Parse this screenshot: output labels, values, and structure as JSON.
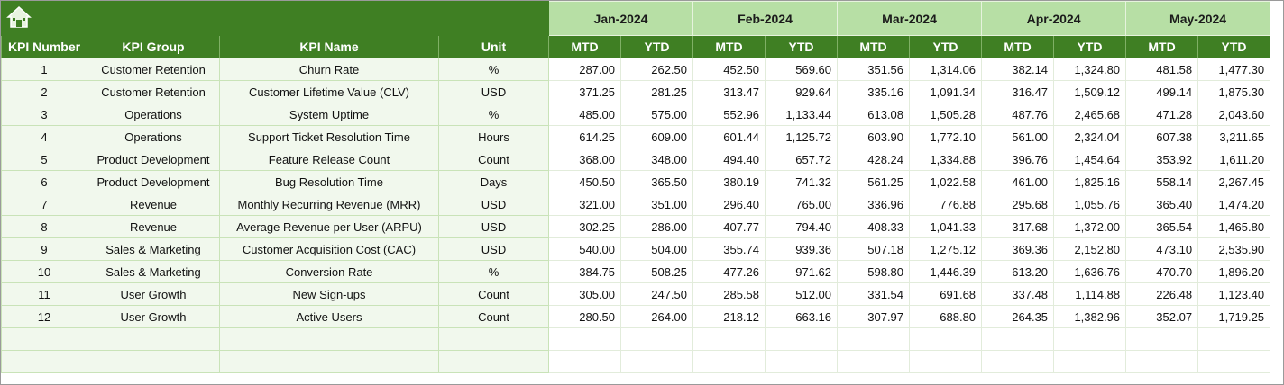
{
  "header": {
    "months": [
      "Jan-2024",
      "Feb-2024",
      "Mar-2024",
      "Apr-2024",
      "May-2024"
    ],
    "columns": [
      "KPI Number",
      "KPI Group",
      "KPI Name",
      "Unit"
    ],
    "subheaders": [
      "MTD",
      "YTD"
    ]
  },
  "table": {
    "rows": [
      [
        1,
        "Customer Retention",
        "Churn Rate",
        "%",
        "287.00",
        "262.50",
        "452.50",
        "569.60",
        "351.56",
        "1,314.06",
        "382.14",
        "1,324.80",
        "481.58",
        "1,477.30"
      ],
      [
        2,
        "Customer Retention",
        "Customer Lifetime Value (CLV)",
        "USD",
        "371.25",
        "281.25",
        "313.47",
        "929.64",
        "335.16",
        "1,091.34",
        "316.47",
        "1,509.12",
        "499.14",
        "1,875.30"
      ],
      [
        3,
        "Operations",
        "System Uptime",
        "%",
        "485.00",
        "575.00",
        "552.96",
        "1,133.44",
        "613.08",
        "1,505.28",
        "487.76",
        "2,465.68",
        "471.28",
        "2,043.60"
      ],
      [
        4,
        "Operations",
        "Support Ticket Resolution Time",
        "Hours",
        "614.25",
        "609.00",
        "601.44",
        "1,125.72",
        "603.90",
        "1,772.10",
        "561.00",
        "2,324.04",
        "607.38",
        "3,211.65"
      ],
      [
        5,
        "Product Development",
        "Feature Release Count",
        "Count",
        "368.00",
        "348.00",
        "494.40",
        "657.72",
        "428.24",
        "1,334.88",
        "396.76",
        "1,454.64",
        "353.92",
        "1,611.20"
      ],
      [
        6,
        "Product Development",
        "Bug Resolution Time",
        "Days",
        "450.50",
        "365.50",
        "380.19",
        "741.32",
        "561.25",
        "1,022.58",
        "461.00",
        "1,825.16",
        "558.14",
        "2,267.45"
      ],
      [
        7,
        "Revenue",
        "Monthly Recurring Revenue (MRR)",
        "USD",
        "321.00",
        "351.00",
        "296.40",
        "765.00",
        "336.96",
        "776.88",
        "295.68",
        "1,055.76",
        "365.40",
        "1,474.20"
      ],
      [
        8,
        "Revenue",
        "Average Revenue per User (ARPU)",
        "USD",
        "302.25",
        "286.00",
        "407.77",
        "794.40",
        "408.33",
        "1,041.33",
        "317.68",
        "1,372.00",
        "365.54",
        "1,465.80"
      ],
      [
        9,
        "Sales & Marketing",
        "Customer Acquisition Cost (CAC)",
        "USD",
        "540.00",
        "504.00",
        "355.74",
        "939.36",
        "507.18",
        "1,275.12",
        "369.36",
        "2,152.80",
        "473.10",
        "2,535.90"
      ],
      [
        10,
        "Sales & Marketing",
        "Conversion Rate",
        "%",
        "384.75",
        "508.25",
        "477.26",
        "971.62",
        "598.80",
        "1,446.39",
        "613.20",
        "1,636.76",
        "470.70",
        "1,896.20"
      ],
      [
        11,
        "User Growth",
        "New Sign-ups",
        "Count",
        "305.00",
        "247.50",
        "285.58",
        "512.00",
        "331.54",
        "691.68",
        "337.48",
        "1,114.88",
        "226.48",
        "1,123.40"
      ],
      [
        12,
        "User Growth",
        "Active Users",
        "Count",
        "280.50",
        "264.00",
        "218.12",
        "663.16",
        "307.97",
        "688.80",
        "264.35",
        "1,382.96",
        "352.07",
        "1,719.25"
      ]
    ]
  }
}
